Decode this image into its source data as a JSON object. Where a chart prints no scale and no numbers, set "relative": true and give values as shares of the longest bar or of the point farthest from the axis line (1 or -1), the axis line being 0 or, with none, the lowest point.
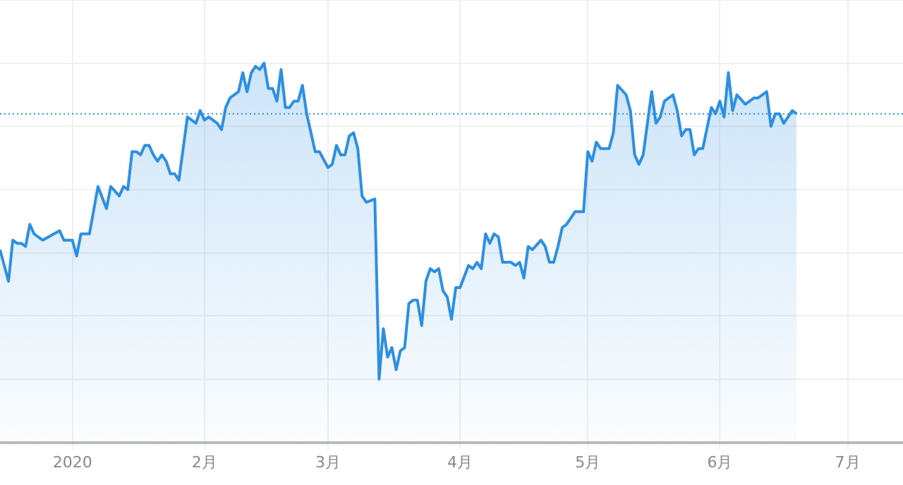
{
  "chart_data": {
    "type": "area",
    "relative": true,
    "grid": true,
    "line_style": "solid",
    "marker": "none",
    "xlim": [
      "2019-12-15",
      "2020-07-14"
    ],
    "xticks": [
      {
        "value": "2020-01-01",
        "label": "2020"
      },
      {
        "value": "2020-02-01",
        "label": "2月"
      },
      {
        "value": "2020-03-01",
        "label": "3月"
      },
      {
        "value": "2020-04-01",
        "label": "4月"
      },
      {
        "value": "2020-05-01",
        "label": "5月"
      },
      {
        "value": "2020-06-01",
        "label": "6月"
      },
      {
        "value": "2020-07-01",
        "label": "7月"
      }
    ],
    "ref_lines": [
      {
        "axis": "y",
        "value": 0.84,
        "color": "#2d8fe3",
        "line_style": "dotted"
      }
    ],
    "x": [
      "2019-12-15",
      "2019-12-17",
      "2019-12-18",
      "2019-12-19",
      "2019-12-20",
      "2019-12-21",
      "2019-12-22",
      "2019-12-23",
      "2019-12-25",
      "2019-12-29",
      "2019-12-30",
      "2020-01-01",
      "2020-01-02",
      "2020-01-03",
      "2020-01-05",
      "2020-01-07",
      "2020-01-09",
      "2020-01-10",
      "2020-01-12",
      "2020-01-13",
      "2020-01-14",
      "2020-01-15",
      "2020-01-16",
      "2020-01-17",
      "2020-01-18",
      "2020-01-19",
      "2020-01-20",
      "2020-01-21",
      "2020-01-22",
      "2020-01-23",
      "2020-01-24",
      "2020-01-25",
      "2020-01-26",
      "2020-01-27",
      "2020-01-28",
      "2020-01-30",
      "2020-01-31",
      "2020-02-01",
      "2020-02-02",
      "2020-02-04",
      "2020-02-05",
      "2020-02-06",
      "2020-02-07",
      "2020-02-09",
      "2020-02-10",
      "2020-02-11",
      "2020-02-12",
      "2020-02-13",
      "2020-02-14",
      "2020-02-15",
      "2020-02-16",
      "2020-02-17",
      "2020-02-18",
      "2020-02-19",
      "2020-02-20",
      "2020-02-21",
      "2020-02-22",
      "2020-02-23",
      "2020-02-24",
      "2020-02-25",
      "2020-02-27",
      "2020-02-28",
      "2020-03-01",
      "2020-03-02",
      "2020-03-03",
      "2020-03-04",
      "2020-03-05",
      "2020-03-06",
      "2020-03-07",
      "2020-03-08",
      "2020-03-09",
      "2020-03-10",
      "2020-03-12",
      "2020-03-13",
      "2020-03-14",
      "2020-03-15",
      "2020-03-16",
      "2020-03-17",
      "2020-03-18",
      "2020-03-19",
      "2020-03-20",
      "2020-03-21",
      "2020-03-22",
      "2020-03-23",
      "2020-03-24",
      "2020-03-25",
      "2020-03-26",
      "2020-03-27",
      "2020-03-28",
      "2020-03-29",
      "2020-03-30",
      "2020-03-31",
      "2020-04-01",
      "2020-04-03",
      "2020-04-04",
      "2020-04-05",
      "2020-04-06",
      "2020-04-07",
      "2020-04-08",
      "2020-04-09",
      "2020-04-10",
      "2020-04-11",
      "2020-04-13",
      "2020-04-14",
      "2020-04-15",
      "2020-04-16",
      "2020-04-17",
      "2020-04-18",
      "2020-04-20",
      "2020-04-21",
      "2020-04-22",
      "2020-04-23",
      "2020-04-24",
      "2020-04-25",
      "2020-04-26",
      "2020-04-28",
      "2020-04-29",
      "2020-04-30",
      "2020-05-01",
      "2020-05-02",
      "2020-05-03",
      "2020-05-04",
      "2020-05-06",
      "2020-05-07",
      "2020-05-08",
      "2020-05-10",
      "2020-05-11",
      "2020-05-12",
      "2020-05-13",
      "2020-05-14",
      "2020-05-16",
      "2020-05-17",
      "2020-05-18",
      "2020-05-19",
      "2020-05-21",
      "2020-05-22",
      "2020-05-23",
      "2020-05-24",
      "2020-05-25",
      "2020-05-26",
      "2020-05-27",
      "2020-05-28",
      "2020-05-30",
      "2020-05-31",
      "2020-06-01",
      "2020-06-02",
      "2020-06-03",
      "2020-06-04",
      "2020-06-05",
      "2020-06-07",
      "2020-06-08",
      "2020-06-09",
      "2020-06-10",
      "2020-06-12",
      "2020-06-13",
      "2020-06-14",
      "2020-06-15",
      "2020-06-16",
      "2020-06-17",
      "2020-06-18",
      "2020-06-19"
    ],
    "series": [
      {
        "color": "#2d8fe3",
        "values": [
          0.41,
          0.31,
          0.44,
          0.43,
          0.43,
          0.42,
          0.49,
          0.46,
          0.44,
          0.47,
          0.44,
          0.44,
          0.39,
          0.46,
          0.46,
          0.61,
          0.54,
          0.61,
          0.58,
          0.61,
          0.6,
          0.72,
          0.72,
          0.71,
          0.74,
          0.74,
          0.71,
          0.69,
          0.71,
          0.69,
          0.65,
          0.65,
          0.63,
          0.73,
          0.83,
          0.81,
          0.85,
          0.82,
          0.83,
          0.81,
          0.79,
          0.86,
          0.89,
          0.91,
          0.97,
          0.91,
          0.97,
          0.99,
          0.98,
          1.0,
          0.92,
          0.92,
          0.88,
          0.98,
          0.86,
          0.86,
          0.88,
          0.88,
          0.93,
          0.84,
          0.72,
          0.72,
          0.67,
          0.68,
          0.74,
          0.71,
          0.71,
          0.77,
          0.78,
          0.73,
          0.58,
          0.56,
          0.57,
          0.0,
          0.16,
          0.07,
          0.1,
          0.03,
          0.09,
          0.1,
          0.24,
          0.25,
          0.25,
          0.17,
          0.31,
          0.35,
          0.34,
          0.35,
          0.28,
          0.26,
          0.19,
          0.29,
          0.29,
          0.36,
          0.35,
          0.37,
          0.35,
          0.46,
          0.43,
          0.46,
          0.45,
          0.37,
          0.37,
          0.36,
          0.37,
          0.32,
          0.42,
          0.41,
          0.44,
          0.42,
          0.37,
          0.37,
          0.42,
          0.48,
          0.49,
          0.53,
          0.53,
          0.53,
          0.72,
          0.69,
          0.75,
          0.73,
          0.73,
          0.78,
          0.93,
          0.9,
          0.85,
          0.71,
          0.68,
          0.71,
          0.91,
          0.81,
          0.83,
          0.88,
          0.9,
          0.85,
          0.77,
          0.79,
          0.79,
          0.71,
          0.73,
          0.73,
          0.86,
          0.84,
          0.88,
          0.83,
          0.97,
          0.85,
          0.9,
          0.87,
          0.88,
          0.89,
          0.89,
          0.91,
          0.8,
          0.84,
          0.84,
          0.81,
          0.83,
          0.85,
          0.84
        ]
      }
    ]
  }
}
